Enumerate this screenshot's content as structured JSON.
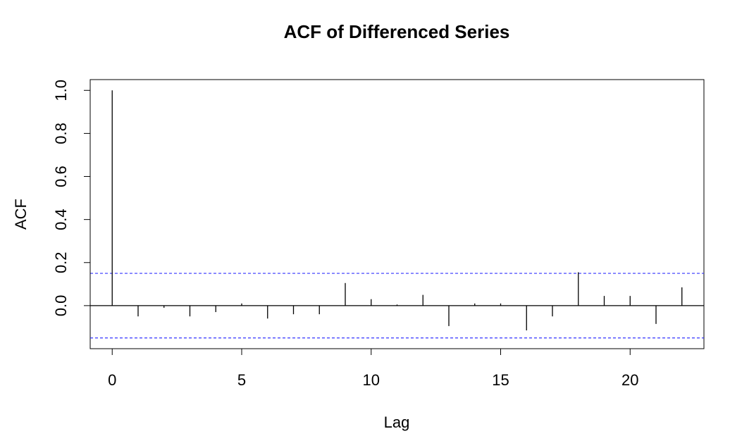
{
  "chart_data": {
    "type": "bar",
    "title": "ACF of Differenced Series",
    "xlabel": "Lag",
    "ylabel": "ACF",
    "x": [
      0,
      1,
      2,
      3,
      4,
      5,
      6,
      7,
      8,
      9,
      10,
      11,
      12,
      13,
      14,
      15,
      16,
      17,
      18,
      19,
      20,
      21,
      22
    ],
    "values": [
      1.0,
      -0.05,
      -0.01,
      -0.05,
      -0.03,
      0.01,
      -0.06,
      -0.04,
      -0.04,
      0.105,
      0.03,
      0.005,
      0.05,
      -0.095,
      0.01,
      0.01,
      -0.115,
      -0.05,
      0.155,
      0.045,
      0.045,
      -0.085,
      0.085
    ],
    "confidence_bound": 0.15,
    "x_ticks": [
      0,
      5,
      10,
      15,
      20
    ],
    "y_ticks": [
      0.0,
      0.2,
      0.4,
      0.6,
      0.8,
      1.0
    ],
    "x_tick_labels": [
      "0",
      "5",
      "10",
      "15",
      "20"
    ],
    "y_tick_labels": [
      "0.0",
      "0.2",
      "0.4",
      "0.6",
      "0.8",
      "1.0"
    ],
    "xlim": [
      -0.85,
      22.85
    ],
    "ylim": [
      -0.2,
      1.05
    ],
    "colors": {
      "bars": "#000000",
      "confidence": "#3333ff",
      "zero_line": "#000000"
    }
  }
}
